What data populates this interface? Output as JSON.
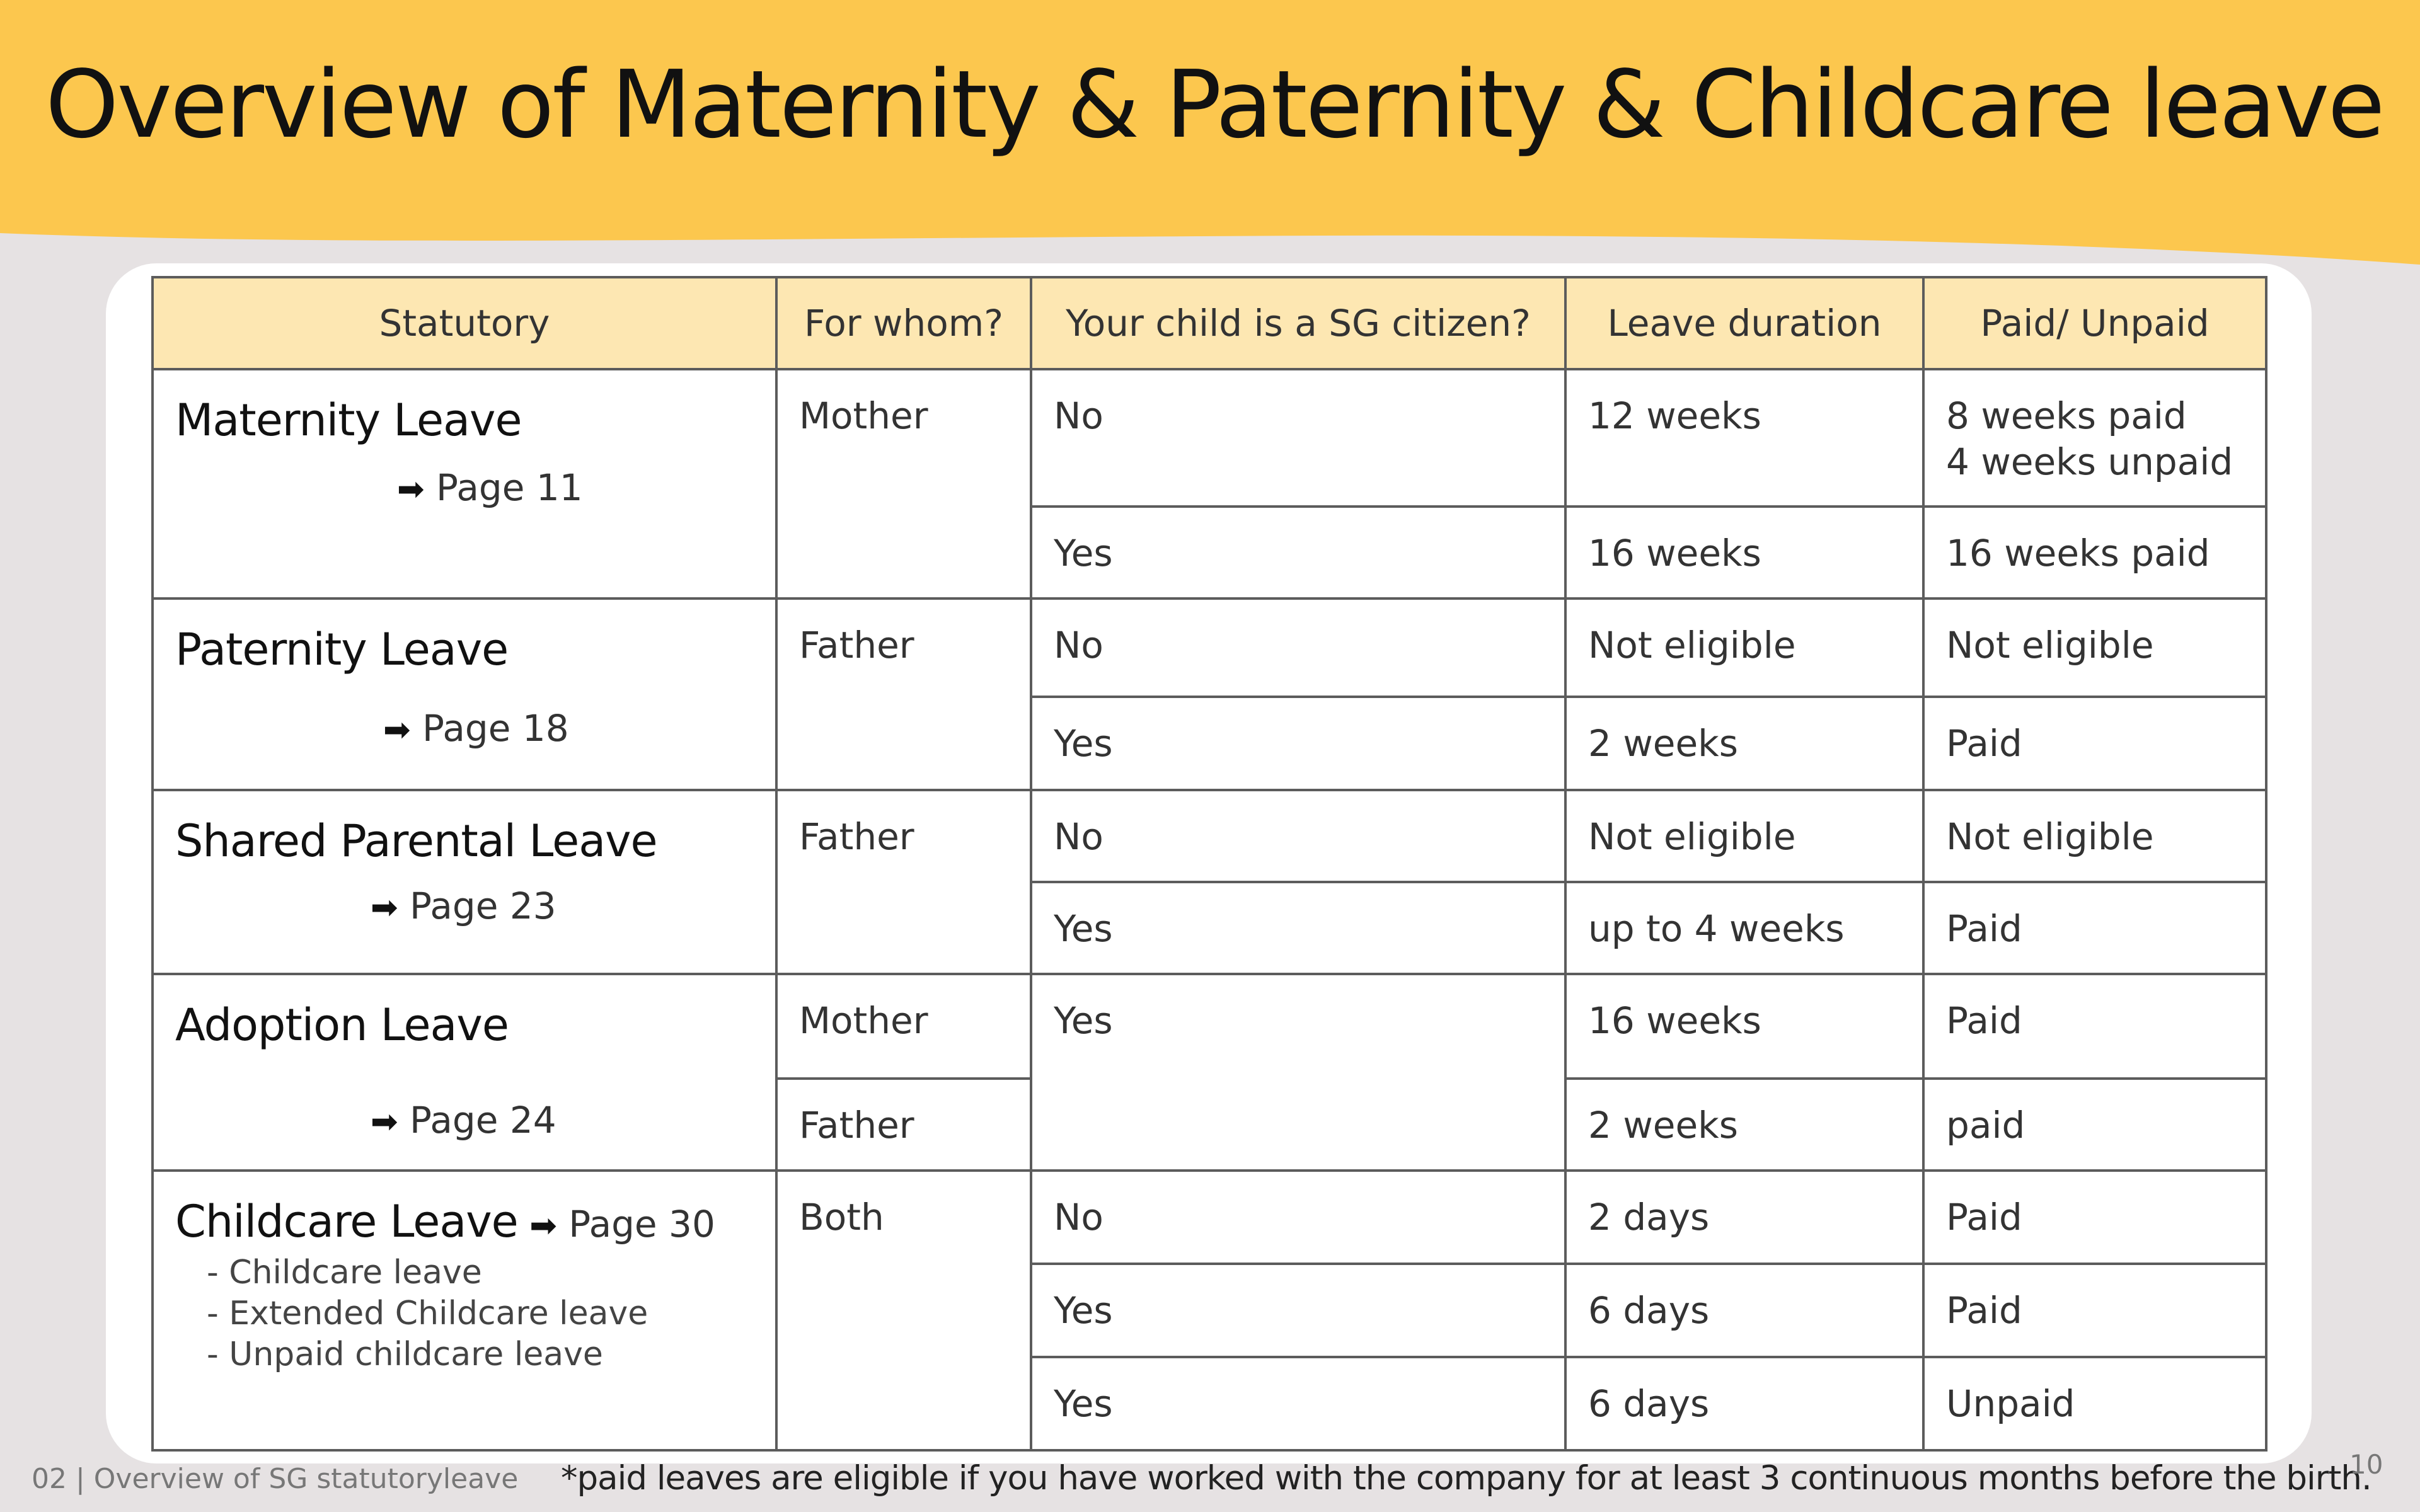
{
  "colors": {
    "banner": "#fcc74e",
    "background": "#e6e2e3",
    "card": "#ffffff",
    "table_header": "#fde7b2",
    "table_border": "#5c5c5c"
  },
  "title": "Overview of Maternity & Paternity & Childcare leave",
  "table": {
    "headers": [
      "Statutory",
      "For whom?",
      "Your child is a SG citizen?",
      "Leave duration",
      "Paid/ Unpaid"
    ],
    "rows": {
      "maternity": {
        "name": "Maternity Leave",
        "link_arrow": "➡",
        "link": "Page 11",
        "whom": "Mother",
        "no": {
          "citizen": "No",
          "duration": "12 weeks",
          "pay_1": "8 weeks paid",
          "pay_2": "4 weeks unpaid"
        },
        "yes": {
          "citizen": "Yes",
          "duration": "16 weeks",
          "pay": "16 weeks paid"
        }
      },
      "paternity": {
        "name": "Paternity Leave",
        "link_arrow": "➡",
        "link": "Page 18",
        "whom": "Father",
        "no": {
          "citizen": "No",
          "duration": "Not eligible",
          "pay": "Not eligible"
        },
        "yes": {
          "citizen": "Yes",
          "duration": "2 weeks",
          "pay": "Paid"
        }
      },
      "shared": {
        "name": "Shared Parental Leave",
        "link_arrow": "➡",
        "link": "Page 23",
        "whom": "Father",
        "no": {
          "citizen": "No",
          "duration": "Not eligible",
          "pay": "Not eligible"
        },
        "yes": {
          "citizen": "Yes",
          "duration": "up to 4 weeks",
          "pay": "Paid"
        }
      },
      "adoption": {
        "name": "Adoption Leave",
        "link_arrow": "➡",
        "link": "Page 24",
        "citizen": "Yes",
        "mother": {
          "whom": "Mother",
          "duration": "16 weeks",
          "pay": "Paid"
        },
        "father": {
          "whom": "Father",
          "duration": "2 weeks",
          "pay": "paid"
        }
      },
      "childcare": {
        "name": "Childcare Leave",
        "link_arrow": "➡",
        "link": "Page 30",
        "sub_items": [
          "- Childcare leave",
          "- Extended Childcare leave",
          "- Unpaid childcare leave"
        ],
        "whom": "Both",
        "no": {
          "citizen": "No",
          "duration": "2 days",
          "pay": "Paid"
        },
        "yes_paid": {
          "citizen": "Yes",
          "duration": "6 days",
          "pay": "Paid"
        },
        "yes_unpaid": {
          "citizen": "Yes",
          "duration": "6 days",
          "pay": "Unpaid"
        }
      }
    }
  },
  "footer": {
    "section": "02 | Overview of SG statutoryleave",
    "note": "*paid leaves are eligible if you have worked with the company for at least 3 continuous months before the birth.",
    "page_number": "10"
  }
}
